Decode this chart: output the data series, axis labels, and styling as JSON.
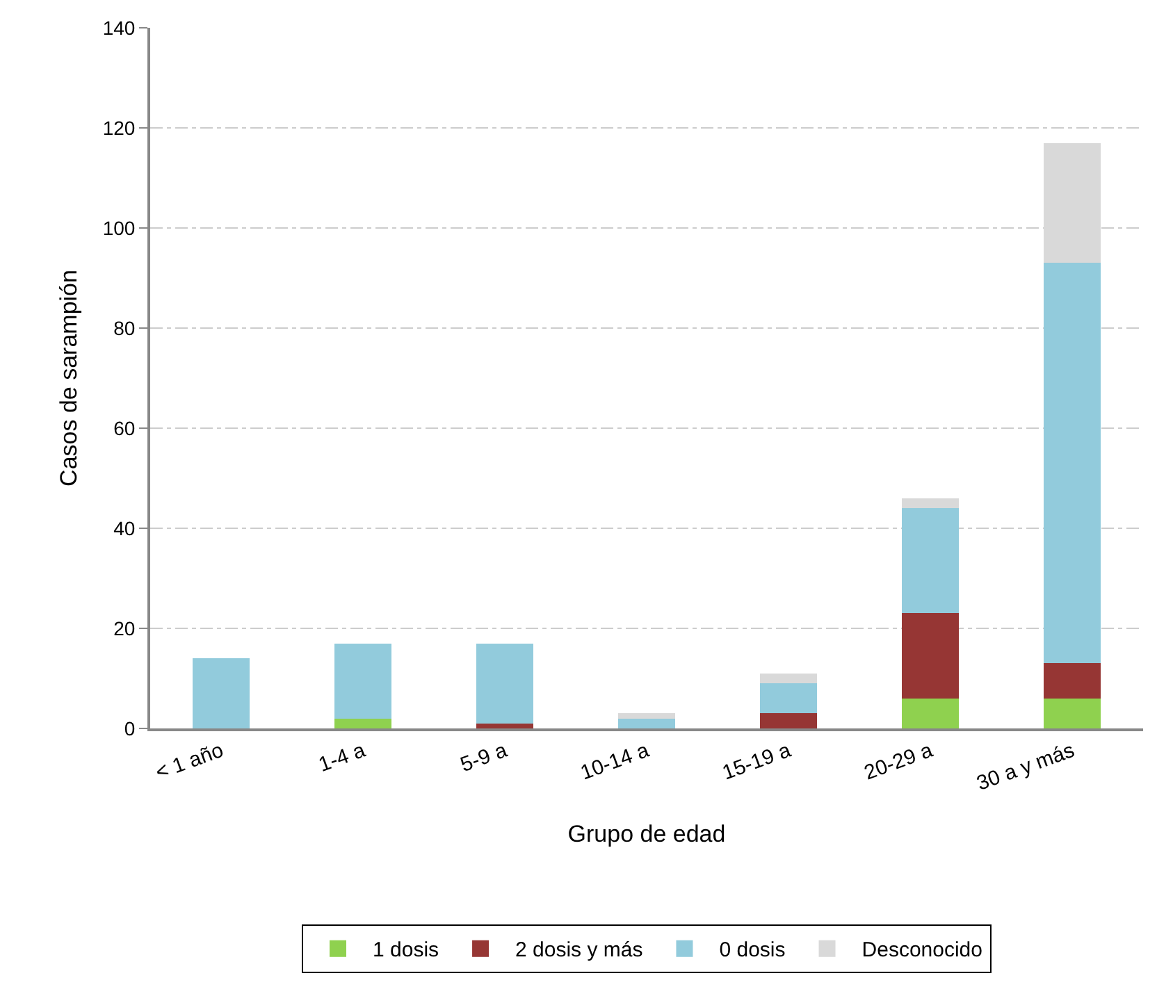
{
  "chart_data": {
    "type": "bar",
    "stacked": true,
    "xlabel": "Grupo de edad",
    "ylabel": "Casos de sarampión",
    "categories": [
      "< 1 año",
      "1-4 a",
      "5-9 a",
      "10-14 a",
      "15-19 a",
      "20-29 a",
      "30 a y más"
    ],
    "series": [
      {
        "name": "1 dosis",
        "color": "#8fd14f",
        "values": [
          0,
          2,
          0,
          0,
          0,
          6,
          6
        ]
      },
      {
        "name": "2 dosis y más",
        "color": "#963634",
        "values": [
          0,
          0,
          1,
          0,
          3,
          17,
          7
        ]
      },
      {
        "name": "0 dosis",
        "color": "#92cbdc",
        "values": [
          14,
          15,
          16,
          2,
          6,
          21,
          80
        ]
      },
      {
        "name": "Desconocido",
        "color": "#d9d9d9",
        "values": [
          0,
          0,
          0,
          1,
          2,
          2,
          24
        ]
      }
    ],
    "ylim": [
      0,
      140
    ],
    "yticks": [
      0,
      20,
      40,
      60,
      80,
      100,
      120,
      140
    ],
    "grid": "y",
    "legend": "bottom"
  }
}
